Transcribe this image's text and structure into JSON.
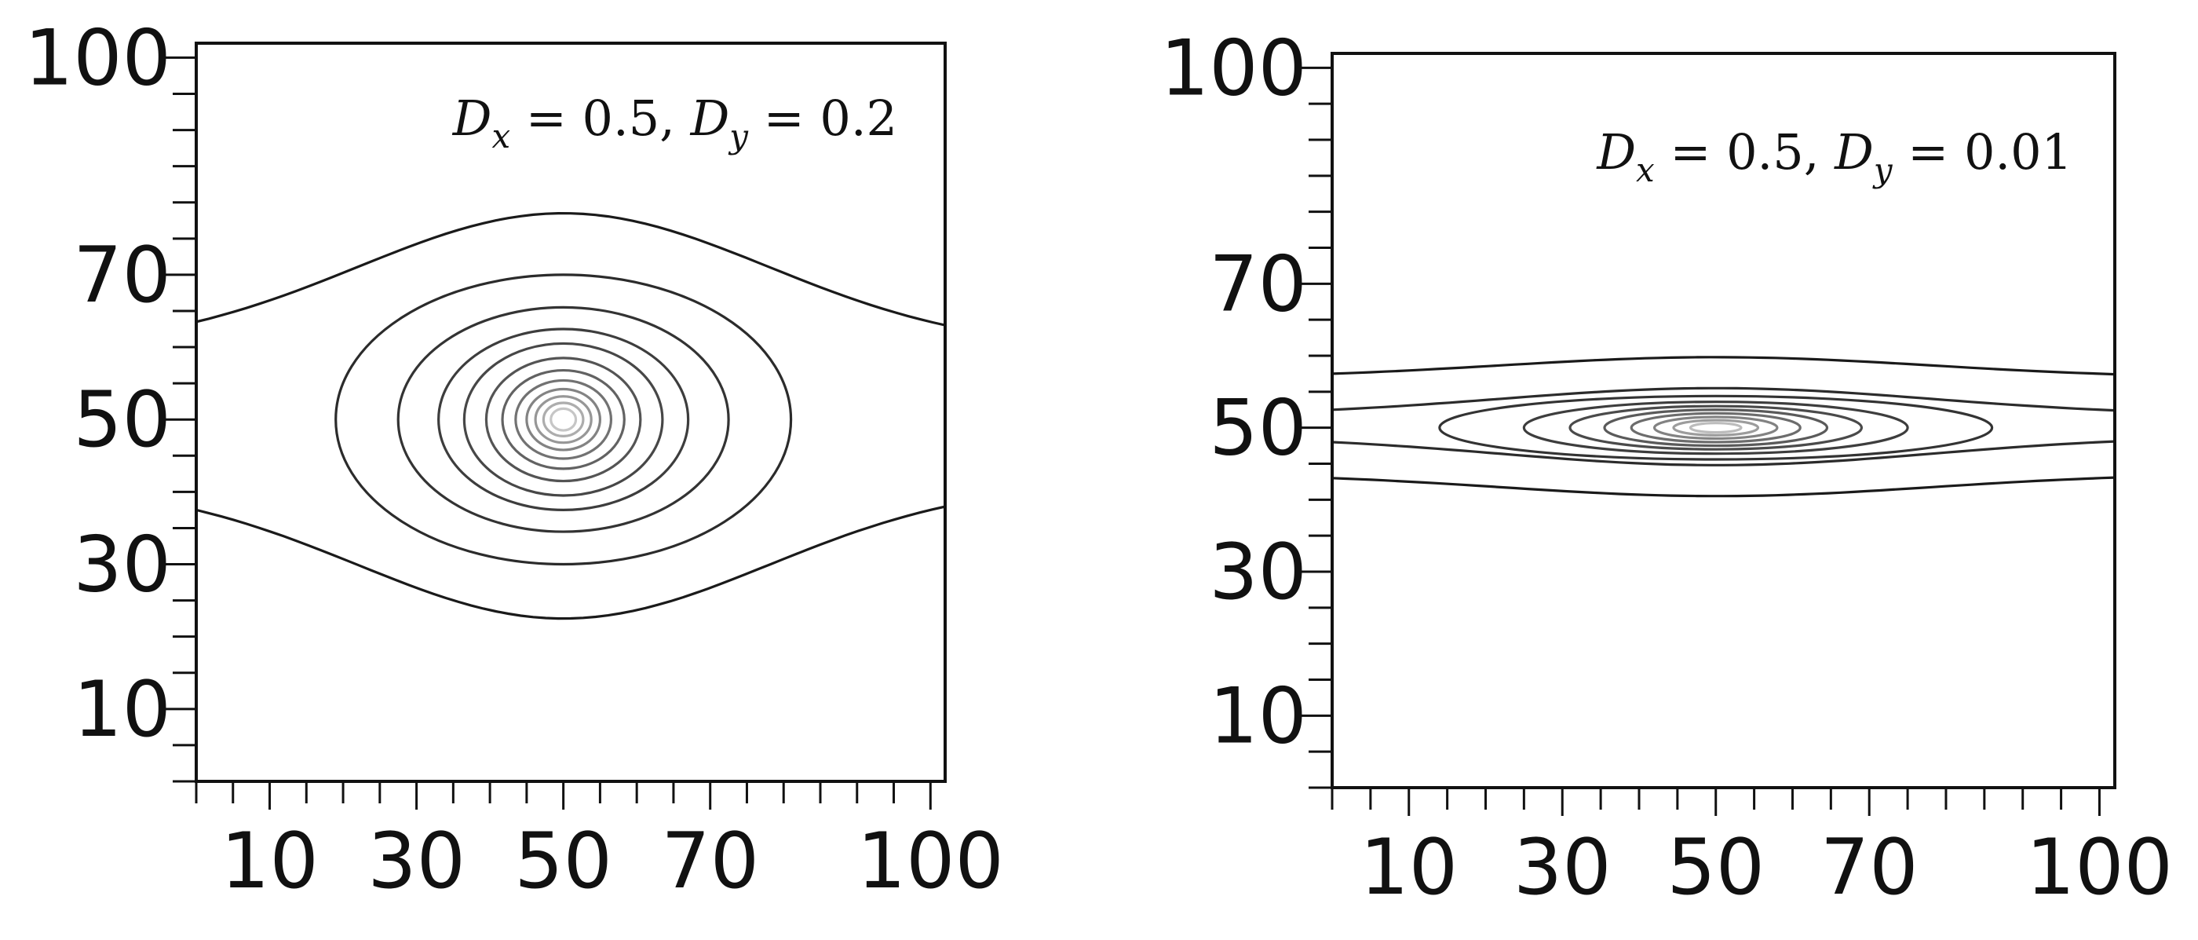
{
  "chart_data": [
    {
      "type": "contour",
      "annotation": {
        "parts": [
          "D",
          "x",
          " = 0.5, ",
          "D",
          "y",
          " = 0.2"
        ]
      },
      "x_ticks": [
        10,
        30,
        50,
        70,
        100
      ],
      "y_ticks": [
        10,
        30,
        50,
        70,
        100
      ],
      "xlim": [
        0,
        102
      ],
      "ylim": [
        0,
        102
      ],
      "grid": false,
      "center": {
        "x": 50,
        "y": 50
      },
      "contours": [
        {
          "kind": "open",
          "upper_y_center": 78.5,
          "upper_y_edge": 63.5,
          "lower_y_center": 22.5,
          "lower_y_edge": 37.5,
          "color": "#1a1a1a"
        },
        {
          "kind": "closed",
          "x_radius": 31,
          "y_radius": 20,
          "color": "#2b2b2b"
        },
        {
          "kind": "closed",
          "x_radius": 22.5,
          "y_radius": 15.5,
          "color": "#333333"
        },
        {
          "kind": "closed",
          "x_radius": 17,
          "y_radius": 12.5,
          "color": "#3d3d3d"
        },
        {
          "kind": "closed",
          "x_radius": 13.5,
          "y_radius": 10.5,
          "color": "#474747"
        },
        {
          "kind": "closed",
          "x_radius": 10.5,
          "y_radius": 8.5,
          "color": "#545454"
        },
        {
          "kind": "closed",
          "x_radius": 8.3,
          "y_radius": 6.8,
          "color": "#626262"
        },
        {
          "kind": "closed",
          "x_radius": 6.5,
          "y_radius": 5.4,
          "color": "#727272"
        },
        {
          "kind": "closed",
          "x_radius": 5.0,
          "y_radius": 4.2,
          "color": "#838383"
        },
        {
          "kind": "closed",
          "x_radius": 3.8,
          "y_radius": 3.2,
          "color": "#979797"
        },
        {
          "kind": "closed",
          "x_radius": 2.7,
          "y_radius": 2.3,
          "color": "#adadad"
        },
        {
          "kind": "closed",
          "x_radius": 1.7,
          "y_radius": 1.5,
          "color": "#c6c6c6"
        }
      ]
    },
    {
      "type": "contour",
      "annotation": {
        "parts": [
          "D",
          "x",
          " = 0.5, ",
          "D",
          "y",
          " = 0.01"
        ]
      },
      "x_ticks": [
        10,
        30,
        50,
        70,
        100
      ],
      "y_ticks": [
        10,
        30,
        50,
        70,
        100
      ],
      "xlim": [
        0,
        102
      ],
      "ylim": [
        0,
        102
      ],
      "grid": false,
      "center": {
        "x": 50,
        "y": 50
      },
      "contours": [
        {
          "kind": "open",
          "upper_y_center": 59.8,
          "upper_y_edge": 57.5,
          "lower_y_center": 40.5,
          "lower_y_edge": 43.0,
          "color": "#1a1a1a"
        },
        {
          "kind": "open",
          "upper_y_center": 55.5,
          "upper_y_edge": 52.5,
          "lower_y_center": 44.8,
          "lower_y_edge": 48.0,
          "color": "#2b2b2b"
        },
        {
          "kind": "closed",
          "x_radius": 36,
          "y_radius": 4.4,
          "color": "#333333"
        },
        {
          "kind": "closed",
          "x_radius": 25,
          "y_radius": 3.6,
          "color": "#3d3d3d"
        },
        {
          "kind": "closed",
          "x_radius": 19,
          "y_radius": 3.0,
          "color": "#4a4a4a"
        },
        {
          "kind": "closed",
          "x_radius": 14.5,
          "y_radius": 2.5,
          "color": "#5a5a5a"
        },
        {
          "kind": "closed",
          "x_radius": 11,
          "y_radius": 2.0,
          "color": "#6c6c6c"
        },
        {
          "kind": "closed",
          "x_radius": 8,
          "y_radius": 1.5,
          "color": "#828282"
        },
        {
          "kind": "closed",
          "x_radius": 5.5,
          "y_radius": 1.05,
          "color": "#9c9c9c"
        },
        {
          "kind": "closed",
          "x_radius": 3.3,
          "y_radius": 0.65,
          "color": "#bcbcbc"
        }
      ]
    }
  ]
}
